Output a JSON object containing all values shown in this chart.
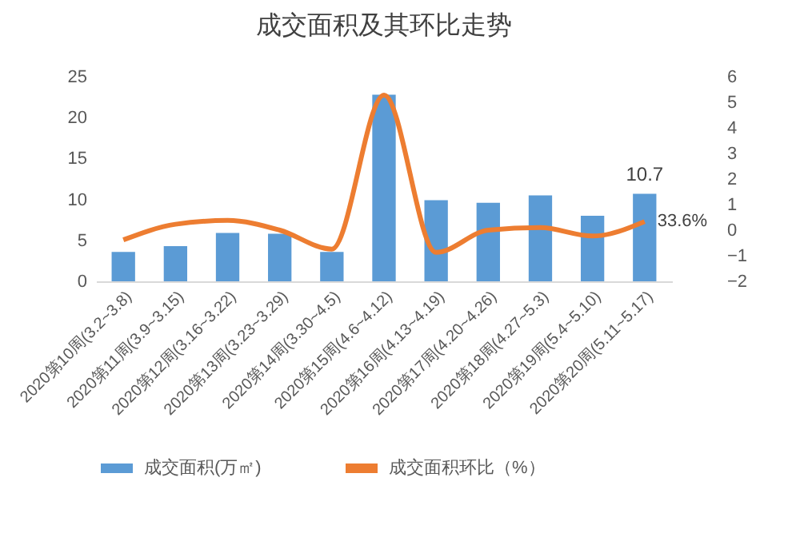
{
  "chart_data": {
    "type": "bar",
    "title": "成交面积及其环比走势",
    "categories": [
      "2020第10周(3.2~3.8)",
      "2020第11周(3.9~3.15)",
      "2020第12周(3.16~3.22)",
      "2020第13周(3.23~3.29)",
      "2020第14周(3.30~4.5)",
      "2020第15周(4.6~4.12)",
      "2020第16周(4.13~4.19)",
      "2020第17周(4.20~4.26)",
      "2020第18周(4.27~5.3)",
      "2020第19周(5.4~5.10)",
      "2020第20周(5.11~5.17)"
    ],
    "series": [
      {
        "name": "成交面积(万㎡)",
        "color": "#5b9bd5",
        "values": [
          3.6,
          4.3,
          5.9,
          5.8,
          3.6,
          22.8,
          9.9,
          9.6,
          10.5,
          8.0,
          10.7
        ],
        "value_labels": [
          null,
          null,
          null,
          null,
          null,
          null,
          null,
          null,
          null,
          null,
          "10.7"
        ]
      },
      {
        "name": "成交面积环比（%）",
        "type": "line",
        "axis": "y2",
        "color": "#ed7d31",
        "values": [
          -0.38,
          0.23,
          0.38,
          0.0,
          -0.74,
          5.28,
          -0.87,
          0.0,
          0.1,
          -0.23,
          0.336
        ],
        "value_labels": [
          null,
          null,
          null,
          null,
          null,
          null,
          null,
          null,
          null,
          null,
          "33.6%"
        ]
      }
    ],
    "ylim": [
      0,
      25
    ],
    "yticks": [
      0,
      5,
      10,
      15,
      20,
      25
    ],
    "y2lim": [
      -2,
      6
    ],
    "y2ticks": [
      -2,
      -1,
      0,
      1,
      2,
      3,
      4,
      5,
      6
    ],
    "grid": false,
    "legend": "bottom",
    "line_style": "solid",
    "marker": "none"
  }
}
